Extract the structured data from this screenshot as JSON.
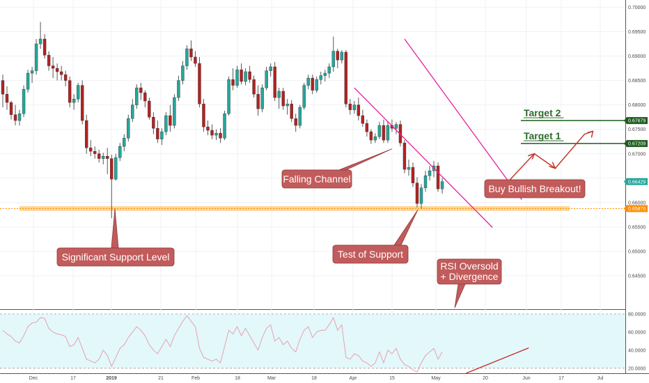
{
  "chart_data": {
    "type": "candlestick",
    "instrument_precision": 5,
    "price_axis": {
      "ylim": [
        0.6393,
        0.7012
      ],
      "ticks": [
        "0.64500",
        "0.65000",
        "0.65500",
        "0.66000",
        "0.66500",
        "0.67000",
        "0.67500",
        "0.68000",
        "0.68500",
        "0.69000",
        "0.69500",
        "0.70000"
      ],
      "hidden_ticks": [
        "0.66500"
      ]
    },
    "date_axis": {
      "labels": [
        "Dec",
        "17",
        "2019",
        "21",
        "Feb",
        "18",
        "Mar",
        "18",
        "Apr",
        "15",
        "May",
        "20",
        "Jun",
        "17",
        "Jul"
      ],
      "bold": [
        "2019"
      ]
    },
    "price_tags": [
      {
        "label": "0.67679",
        "value": 0.67679,
        "color": "#1e5c1e"
      },
      {
        "label": "0.67209",
        "value": 0.67209,
        "color": "#1e5c1e"
      },
      {
        "label": "0.66429",
        "value": 0.66429,
        "color": "#26a69a"
      },
      {
        "label": "0.65876",
        "value": 0.65876,
        "color": "#ff8c00"
      }
    ],
    "candles": [
      {
        "o": 0.685,
        "h": 0.6862,
        "l": 0.6795,
        "c": 0.6822
      },
      {
        "o": 0.6822,
        "h": 0.6838,
        "l": 0.679,
        "c": 0.6805
      },
      {
        "o": 0.6805,
        "h": 0.6808,
        "l": 0.677,
        "c": 0.678
      },
      {
        "o": 0.678,
        "h": 0.68,
        "l": 0.6758,
        "c": 0.6768
      },
      {
        "o": 0.6768,
        "h": 0.679,
        "l": 0.6758,
        "c": 0.6782
      },
      {
        "o": 0.6782,
        "h": 0.684,
        "l": 0.6775,
        "c": 0.6832
      },
      {
        "o": 0.6832,
        "h": 0.6872,
        "l": 0.6825,
        "c": 0.6865
      },
      {
        "o": 0.6865,
        "h": 0.6878,
        "l": 0.6845,
        "c": 0.687
      },
      {
        "o": 0.687,
        "h": 0.6935,
        "l": 0.6862,
        "c": 0.6925
      },
      {
        "o": 0.6925,
        "h": 0.697,
        "l": 0.6915,
        "c": 0.6935
      },
      {
        "o": 0.6935,
        "h": 0.6945,
        "l": 0.6895,
        "c": 0.6902
      },
      {
        "o": 0.6902,
        "h": 0.691,
        "l": 0.687,
        "c": 0.688
      },
      {
        "o": 0.688,
        "h": 0.6898,
        "l": 0.6855,
        "c": 0.6875
      },
      {
        "o": 0.6875,
        "h": 0.6885,
        "l": 0.685,
        "c": 0.6868
      },
      {
        "o": 0.6868,
        "h": 0.688,
        "l": 0.685,
        "c": 0.6862
      },
      {
        "o": 0.6862,
        "h": 0.687,
        "l": 0.6838,
        "c": 0.685
      },
      {
        "o": 0.685,
        "h": 0.6858,
        "l": 0.6795,
        "c": 0.6805
      },
      {
        "o": 0.6805,
        "h": 0.6822,
        "l": 0.679,
        "c": 0.6812
      },
      {
        "o": 0.6812,
        "h": 0.6845,
        "l": 0.6805,
        "c": 0.684
      },
      {
        "o": 0.684,
        "h": 0.685,
        "l": 0.676,
        "c": 0.6768
      },
      {
        "o": 0.6768,
        "h": 0.678,
        "l": 0.67,
        "c": 0.6712
      },
      {
        "o": 0.6712,
        "h": 0.6728,
        "l": 0.6695,
        "c": 0.6705
      },
      {
        "o": 0.6705,
        "h": 0.6715,
        "l": 0.669,
        "c": 0.67
      },
      {
        "o": 0.67,
        "h": 0.6708,
        "l": 0.6682,
        "c": 0.669
      },
      {
        "o": 0.669,
        "h": 0.6702,
        "l": 0.6678,
        "c": 0.6695
      },
      {
        "o": 0.6695,
        "h": 0.6712,
        "l": 0.6658,
        "c": 0.669
      },
      {
        "o": 0.669,
        "h": 0.6698,
        "l": 0.6568,
        "c": 0.6648
      },
      {
        "o": 0.6648,
        "h": 0.67,
        "l": 0.6645,
        "c": 0.6692
      },
      {
        "o": 0.6692,
        "h": 0.6722,
        "l": 0.6685,
        "c": 0.6715
      },
      {
        "o": 0.6715,
        "h": 0.674,
        "l": 0.6705,
        "c": 0.6732
      },
      {
        "o": 0.6732,
        "h": 0.678,
        "l": 0.6725,
        "c": 0.6772
      },
      {
        "o": 0.6772,
        "h": 0.6812,
        "l": 0.6765,
        "c": 0.68
      },
      {
        "o": 0.68,
        "h": 0.6842,
        "l": 0.6792,
        "c": 0.6835
      },
      {
        "o": 0.6835,
        "h": 0.6845,
        "l": 0.681,
        "c": 0.6825
      },
      {
        "o": 0.6825,
        "h": 0.683,
        "l": 0.6795,
        "c": 0.6808
      },
      {
        "o": 0.6808,
        "h": 0.6815,
        "l": 0.677,
        "c": 0.6775
      },
      {
        "o": 0.6775,
        "h": 0.6785,
        "l": 0.674,
        "c": 0.6752
      },
      {
        "o": 0.6752,
        "h": 0.6768,
        "l": 0.6722,
        "c": 0.673
      },
      {
        "o": 0.673,
        "h": 0.6752,
        "l": 0.6718,
        "c": 0.6745
      },
      {
        "o": 0.6745,
        "h": 0.6785,
        "l": 0.6738,
        "c": 0.6778
      },
      {
        "o": 0.6778,
        "h": 0.68,
        "l": 0.6745,
        "c": 0.6758
      },
      {
        "o": 0.6758,
        "h": 0.6822,
        "l": 0.6752,
        "c": 0.6815
      },
      {
        "o": 0.6815,
        "h": 0.686,
        "l": 0.6808,
        "c": 0.685
      },
      {
        "o": 0.685,
        "h": 0.689,
        "l": 0.6842,
        "c": 0.688
      },
      {
        "o": 0.688,
        "h": 0.6922,
        "l": 0.6872,
        "c": 0.6915
      },
      {
        "o": 0.6915,
        "h": 0.6932,
        "l": 0.689,
        "c": 0.6898
      },
      {
        "o": 0.6898,
        "h": 0.691,
        "l": 0.6878,
        "c": 0.6885
      },
      {
        "o": 0.6885,
        "h": 0.6898,
        "l": 0.6795,
        "c": 0.6802
      },
      {
        "o": 0.6802,
        "h": 0.6812,
        "l": 0.6745,
        "c": 0.6755
      },
      {
        "o": 0.6755,
        "h": 0.6768,
        "l": 0.6738,
        "c": 0.6748
      },
      {
        "o": 0.6748,
        "h": 0.676,
        "l": 0.673,
        "c": 0.6738
      },
      {
        "o": 0.6738,
        "h": 0.675,
        "l": 0.6728,
        "c": 0.6742
      },
      {
        "o": 0.6742,
        "h": 0.6752,
        "l": 0.6722,
        "c": 0.6732
      },
      {
        "o": 0.6732,
        "h": 0.6788,
        "l": 0.6728,
        "c": 0.6782
      },
      {
        "o": 0.6782,
        "h": 0.6858,
        "l": 0.6778,
        "c": 0.6852
      },
      {
        "o": 0.6852,
        "h": 0.6875,
        "l": 0.683,
        "c": 0.684
      },
      {
        "o": 0.684,
        "h": 0.688,
        "l": 0.6835,
        "c": 0.6872
      },
      {
        "o": 0.6872,
        "h": 0.6885,
        "l": 0.6842,
        "c": 0.6848
      },
      {
        "o": 0.6848,
        "h": 0.6875,
        "l": 0.684,
        "c": 0.6868
      },
      {
        "o": 0.6868,
        "h": 0.688,
        "l": 0.6845,
        "c": 0.6852
      },
      {
        "o": 0.6852,
        "h": 0.686,
        "l": 0.6815,
        "c": 0.6822
      },
      {
        "o": 0.6822,
        "h": 0.684,
        "l": 0.6778,
        "c": 0.6792
      },
      {
        "o": 0.6792,
        "h": 0.6842,
        "l": 0.6785,
        "c": 0.6835
      },
      {
        "o": 0.6835,
        "h": 0.6878,
        "l": 0.683,
        "c": 0.687
      },
      {
        "o": 0.687,
        "h": 0.6885,
        "l": 0.6858,
        "c": 0.6878
      },
      {
        "o": 0.6878,
        "h": 0.6888,
        "l": 0.6808,
        "c": 0.6815
      },
      {
        "o": 0.6815,
        "h": 0.6835,
        "l": 0.6792,
        "c": 0.6828
      },
      {
        "o": 0.6828,
        "h": 0.6835,
        "l": 0.679,
        "c": 0.6798
      },
      {
        "o": 0.6798,
        "h": 0.6812,
        "l": 0.678,
        "c": 0.6802
      },
      {
        "o": 0.6802,
        "h": 0.681,
        "l": 0.6765,
        "c": 0.6772
      },
      {
        "o": 0.6772,
        "h": 0.6782,
        "l": 0.6745,
        "c": 0.6758
      },
      {
        "o": 0.6758,
        "h": 0.68,
        "l": 0.6752,
        "c": 0.6795
      },
      {
        "o": 0.6795,
        "h": 0.6845,
        "l": 0.679,
        "c": 0.684
      },
      {
        "o": 0.684,
        "h": 0.6862,
        "l": 0.6832,
        "c": 0.6855
      },
      {
        "o": 0.6855,
        "h": 0.6862,
        "l": 0.6822,
        "c": 0.683
      },
      {
        "o": 0.683,
        "h": 0.6858,
        "l": 0.6825,
        "c": 0.6852
      },
      {
        "o": 0.6852,
        "h": 0.6868,
        "l": 0.6842,
        "c": 0.686
      },
      {
        "o": 0.686,
        "h": 0.6872,
        "l": 0.6848,
        "c": 0.6865
      },
      {
        "o": 0.6865,
        "h": 0.6885,
        "l": 0.6855,
        "c": 0.6878
      },
      {
        "o": 0.6878,
        "h": 0.694,
        "l": 0.6868,
        "c": 0.691
      },
      {
        "o": 0.691,
        "h": 0.6915,
        "l": 0.6875,
        "c": 0.6892
      },
      {
        "o": 0.6892,
        "h": 0.6912,
        "l": 0.6885,
        "c": 0.6908
      },
      {
        "o": 0.6908,
        "h": 0.6912,
        "l": 0.6795,
        "c": 0.6802
      },
      {
        "o": 0.6802,
        "h": 0.6812,
        "l": 0.678,
        "c": 0.679
      },
      {
        "o": 0.679,
        "h": 0.6808,
        "l": 0.6782,
        "c": 0.68
      },
      {
        "o": 0.68,
        "h": 0.6815,
        "l": 0.6768,
        "c": 0.6778
      },
      {
        "o": 0.6778,
        "h": 0.679,
        "l": 0.6755,
        "c": 0.6762
      },
      {
        "o": 0.6762,
        "h": 0.677,
        "l": 0.6735,
        "c": 0.6745
      },
      {
        "o": 0.6745,
        "h": 0.675,
        "l": 0.672,
        "c": 0.6728
      },
      {
        "o": 0.6728,
        "h": 0.6742,
        "l": 0.6722,
        "c": 0.6735
      },
      {
        "o": 0.6735,
        "h": 0.6765,
        "l": 0.673,
        "c": 0.6758
      },
      {
        "o": 0.6758,
        "h": 0.677,
        "l": 0.6722,
        "c": 0.6728
      },
      {
        "o": 0.6728,
        "h": 0.6765,
        "l": 0.6722,
        "c": 0.6758
      },
      {
        "o": 0.6758,
        "h": 0.677,
        "l": 0.6745,
        "c": 0.6752
      },
      {
        "o": 0.6752,
        "h": 0.6765,
        "l": 0.674,
        "c": 0.676
      },
      {
        "o": 0.676,
        "h": 0.6768,
        "l": 0.6715,
        "c": 0.6722
      },
      {
        "o": 0.6722,
        "h": 0.6728,
        "l": 0.666,
        "c": 0.6668
      },
      {
        "o": 0.6668,
        "h": 0.6688,
        "l": 0.6655,
        "c": 0.6672
      },
      {
        "o": 0.6672,
        "h": 0.6682,
        "l": 0.6632,
        "c": 0.664
      },
      {
        "o": 0.664,
        "h": 0.6652,
        "l": 0.659,
        "c": 0.6598
      },
      {
        "o": 0.6598,
        "h": 0.6638,
        "l": 0.6588,
        "c": 0.663
      },
      {
        "o": 0.663,
        "h": 0.6665,
        "l": 0.6622,
        "c": 0.6655
      },
      {
        "o": 0.6655,
        "h": 0.6675,
        "l": 0.6645,
        "c": 0.6665
      },
      {
        "o": 0.6665,
        "h": 0.6685,
        "l": 0.6652,
        "c": 0.6675
      },
      {
        "o": 0.6675,
        "h": 0.6682,
        "l": 0.6622,
        "c": 0.6628
      },
      {
        "o": 0.6628,
        "h": 0.665,
        "l": 0.6618,
        "c": 0.6643
      }
    ],
    "channel_lines": [
      {
        "x1": 96,
        "p1": 0.6935,
        "x2": 124,
        "p2": 0.6606
      },
      {
        "x1": 84,
        "p1": 0.6835,
        "x2": 117,
        "p2": 0.6549
      }
    ],
    "support_level": {
      "value": 0.65876,
      "band": [
        0.6583,
        0.65925
      ]
    },
    "targets": [
      {
        "label": "Target 1",
        "value": 0.67209
      },
      {
        "label": "Target 2",
        "value": 0.67679
      }
    ],
    "projection_path": [
      {
        "x": 121,
        "p": 0.6645
      },
      {
        "x": 127,
        "p": 0.67
      },
      {
        "x": 132,
        "p": 0.667
      },
      {
        "x": 139,
        "p": 0.674
      },
      {
        "x": 141,
        "p": 0.6746
      }
    ],
    "annotations": [
      {
        "text": "Falling Channel",
        "target": {
          "x": 93,
          "p": 0.671
        }
      },
      {
        "text": "Buy Bullish Breakout!",
        "target": {
          "x": 121,
          "p": 0.6645
        }
      },
      {
        "text": "Significant Support Level",
        "target": {
          "x": 31,
          "p": 0.65876
        }
      },
      {
        "text": "Test of Support",
        "target": {
          "x": 110,
          "p": 0.6588
        }
      },
      {
        "text": "RSI Oversold",
        "text2": "+ Divergence",
        "target": {
          "x": 118,
          "p": 0.644
        }
      }
    ],
    "rsi": {
      "ylim": [
        16,
        83
      ],
      "ticks": [
        "20.0000",
        "40.0000",
        "60.0000",
        "80.0000"
      ],
      "levels": [
        20,
        80
      ],
      "values": [
        62,
        58,
        55,
        50,
        48,
        56,
        66,
        70,
        71,
        76,
        75,
        64,
        60,
        58,
        57,
        55,
        44,
        46,
        54,
        42,
        30,
        28,
        26,
        30,
        40,
        34,
        22,
        32,
        42,
        46,
        54,
        60,
        66,
        62,
        56,
        46,
        40,
        36,
        44,
        52,
        44,
        56,
        64,
        72,
        78,
        72,
        66,
        42,
        32,
        30,
        28,
        30,
        26,
        44,
        62,
        58,
        66,
        56,
        64,
        56,
        48,
        40,
        54,
        64,
        68,
        50,
        54,
        46,
        50,
        42,
        38,
        52,
        62,
        66,
        54,
        60,
        62,
        62,
        68,
        76,
        62,
        68,
        32,
        30,
        36,
        34,
        28,
        26,
        22,
        26,
        38,
        26,
        40,
        36,
        42,
        30,
        24,
        22,
        18,
        16,
        26,
        34,
        38,
        42,
        30,
        38
      ],
      "divergence_line": {
        "x1": 112,
        "v1": 19,
        "x2": 124,
        "v2": 44
      }
    }
  }
}
